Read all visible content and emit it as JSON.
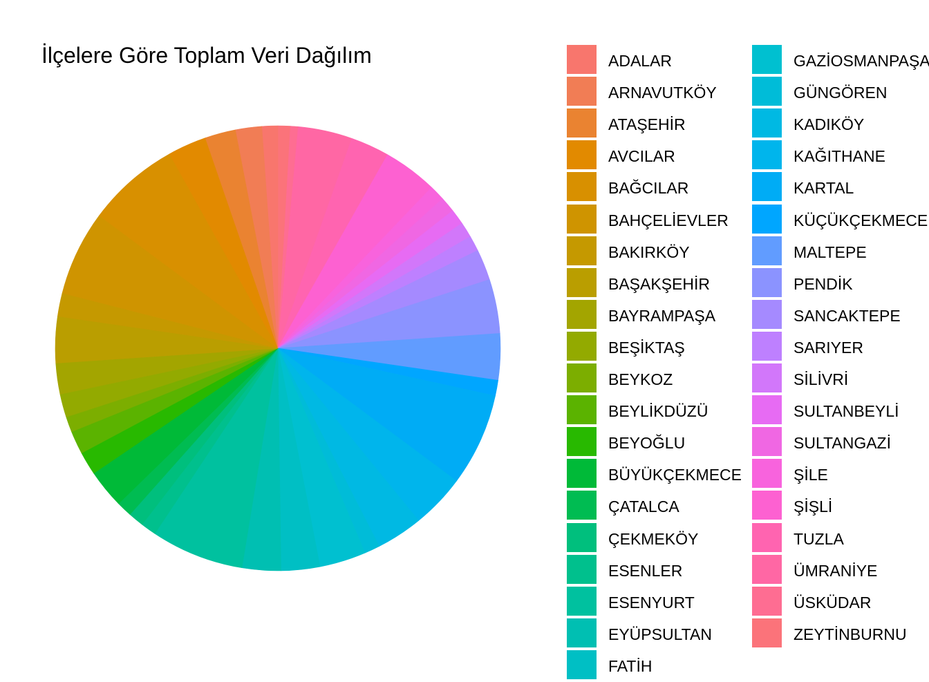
{
  "chart_data": {
    "type": "pie",
    "title": "İlçelere Göre Toplam Veri Dağılım",
    "categories": [
      "ADALAR",
      "ARNAVUTKÖY",
      "ATAŞEHİR",
      "AVCILAR",
      "BAĞCILAR",
      "BAHÇELİEVLER",
      "BAKIRKÖY",
      "BAŞAKŞEHİR",
      "BAYRAMPAŞA",
      "BEŞİKTAŞ",
      "BEYKOZ",
      "BEYLİKDÜZÜ",
      "BEYOĞLU",
      "BÜYÜKÇEKMECE",
      "ÇATALCA",
      "ÇEKMEKÖY",
      "ESENLER",
      "ESENYURT",
      "EYÜPSULTAN",
      "FATİH",
      "GAZİOSMANPAŞA",
      "GÜNGÖREN",
      "KADIKÖY",
      "KAĞITHANE",
      "KARTAL",
      "KÜÇÜKÇEKMECE",
      "MALTEPE",
      "PENDİK",
      "SANCAKTEPE",
      "SARIYER",
      "SİLİVRİ",
      "SULTANBEYLİ",
      "SULTANGAZİ",
      "ŞİLE",
      "ŞİŞLİ",
      "TUZLA",
      "ÜMRANİYE",
      "ÜSKÜDAR",
      "ZEYTİNBURNU"
    ],
    "legend_labels_visible": [
      "ADALAR",
      "ARNAVUTKÖY",
      "ATAŞEHİR",
      "AVCILAR",
      "BAĞCILAR",
      "BAHÇELİEVLER",
      "BAKIRKÖY",
      "BAŞAKŞEHİR",
      "BAYRAMPAŞA",
      "BEŞİKTAŞ",
      "BEYKOZ",
      "BEYLİKDÜZÜ",
      "BEYOĞLU",
      "BÜYÜKÇEKMECE",
      "ÇATALCA",
      "ÇEKMEKÖY",
      "ESENLER",
      "ESENYURT",
      "EYÜPSULTAN",
      "FATİH",
      "GAZİOSMANPAŞA",
      "GÜNGÖREN",
      "KADIKÖY",
      "KAĞITHANE",
      "KARTAL",
      "KÜÇÜKÇEKMECE",
      "MALTEPE",
      "PENDİK",
      "SANCAKTEPE",
      "SARIYER",
      "SİLİVRİ",
      "SULTANBEYLİ",
      "SULTANGAZİ",
      "ŞİLE",
      "ŞİŞLİ",
      "TUZLA",
      "ÜMRANİYE",
      "ÜSKÜDAR",
      "ZEYTİNBURNU"
    ],
    "values": [
      1.0,
      1.7,
      2.0,
      2.5,
      6.0,
      5.5,
      1.5,
      3.0,
      2.0,
      1.5,
      1.0,
      1.5,
      1.5,
      2.5,
      1.0,
      1.0,
      1.0,
      6.0,
      2.5,
      2.5,
      3.0,
      1.0,
      3.0,
      3.5,
      6.0,
      1.0,
      3.0,
      3.5,
      2.0,
      1.0,
      1.0,
      1.0,
      1.0,
      1.0,
      3.5,
      2.5,
      3.5,
      0.5,
      0.8
    ],
    "colors": [
      "#F8766D",
      "#F17D55",
      "#EA8331",
      "#E28A00",
      "#D89000",
      "#CF9400",
      "#C59900",
      "#BA9E00",
      "#A3A500",
      "#93AA00",
      "#7CAE00",
      "#5BB300",
      "#28B900",
      "#00BA38",
      "#00BC52",
      "#00BF7D",
      "#00C08D",
      "#00C19F",
      "#00BFB2",
      "#00BFC4",
      "#00C0D0",
      "#00BCD8",
      "#00B9E3",
      "#00B5EC",
      "#00ACF5",
      "#00A6FF",
      "#619CFF",
      "#8B93FF",
      "#A58AFF",
      "#BE80FF",
      "#D277FA",
      "#E76BF3",
      "#F067E3",
      "#F863DD",
      "#FD61D1",
      "#FF64B0",
      "#FF67A4",
      "#FE6D92",
      "#FB737A"
    ],
    "start": "12 o'clock",
    "direction": "clockwise order from ZEYTİNBURNU back around to ADALAR",
    "legend_position": "right"
  }
}
